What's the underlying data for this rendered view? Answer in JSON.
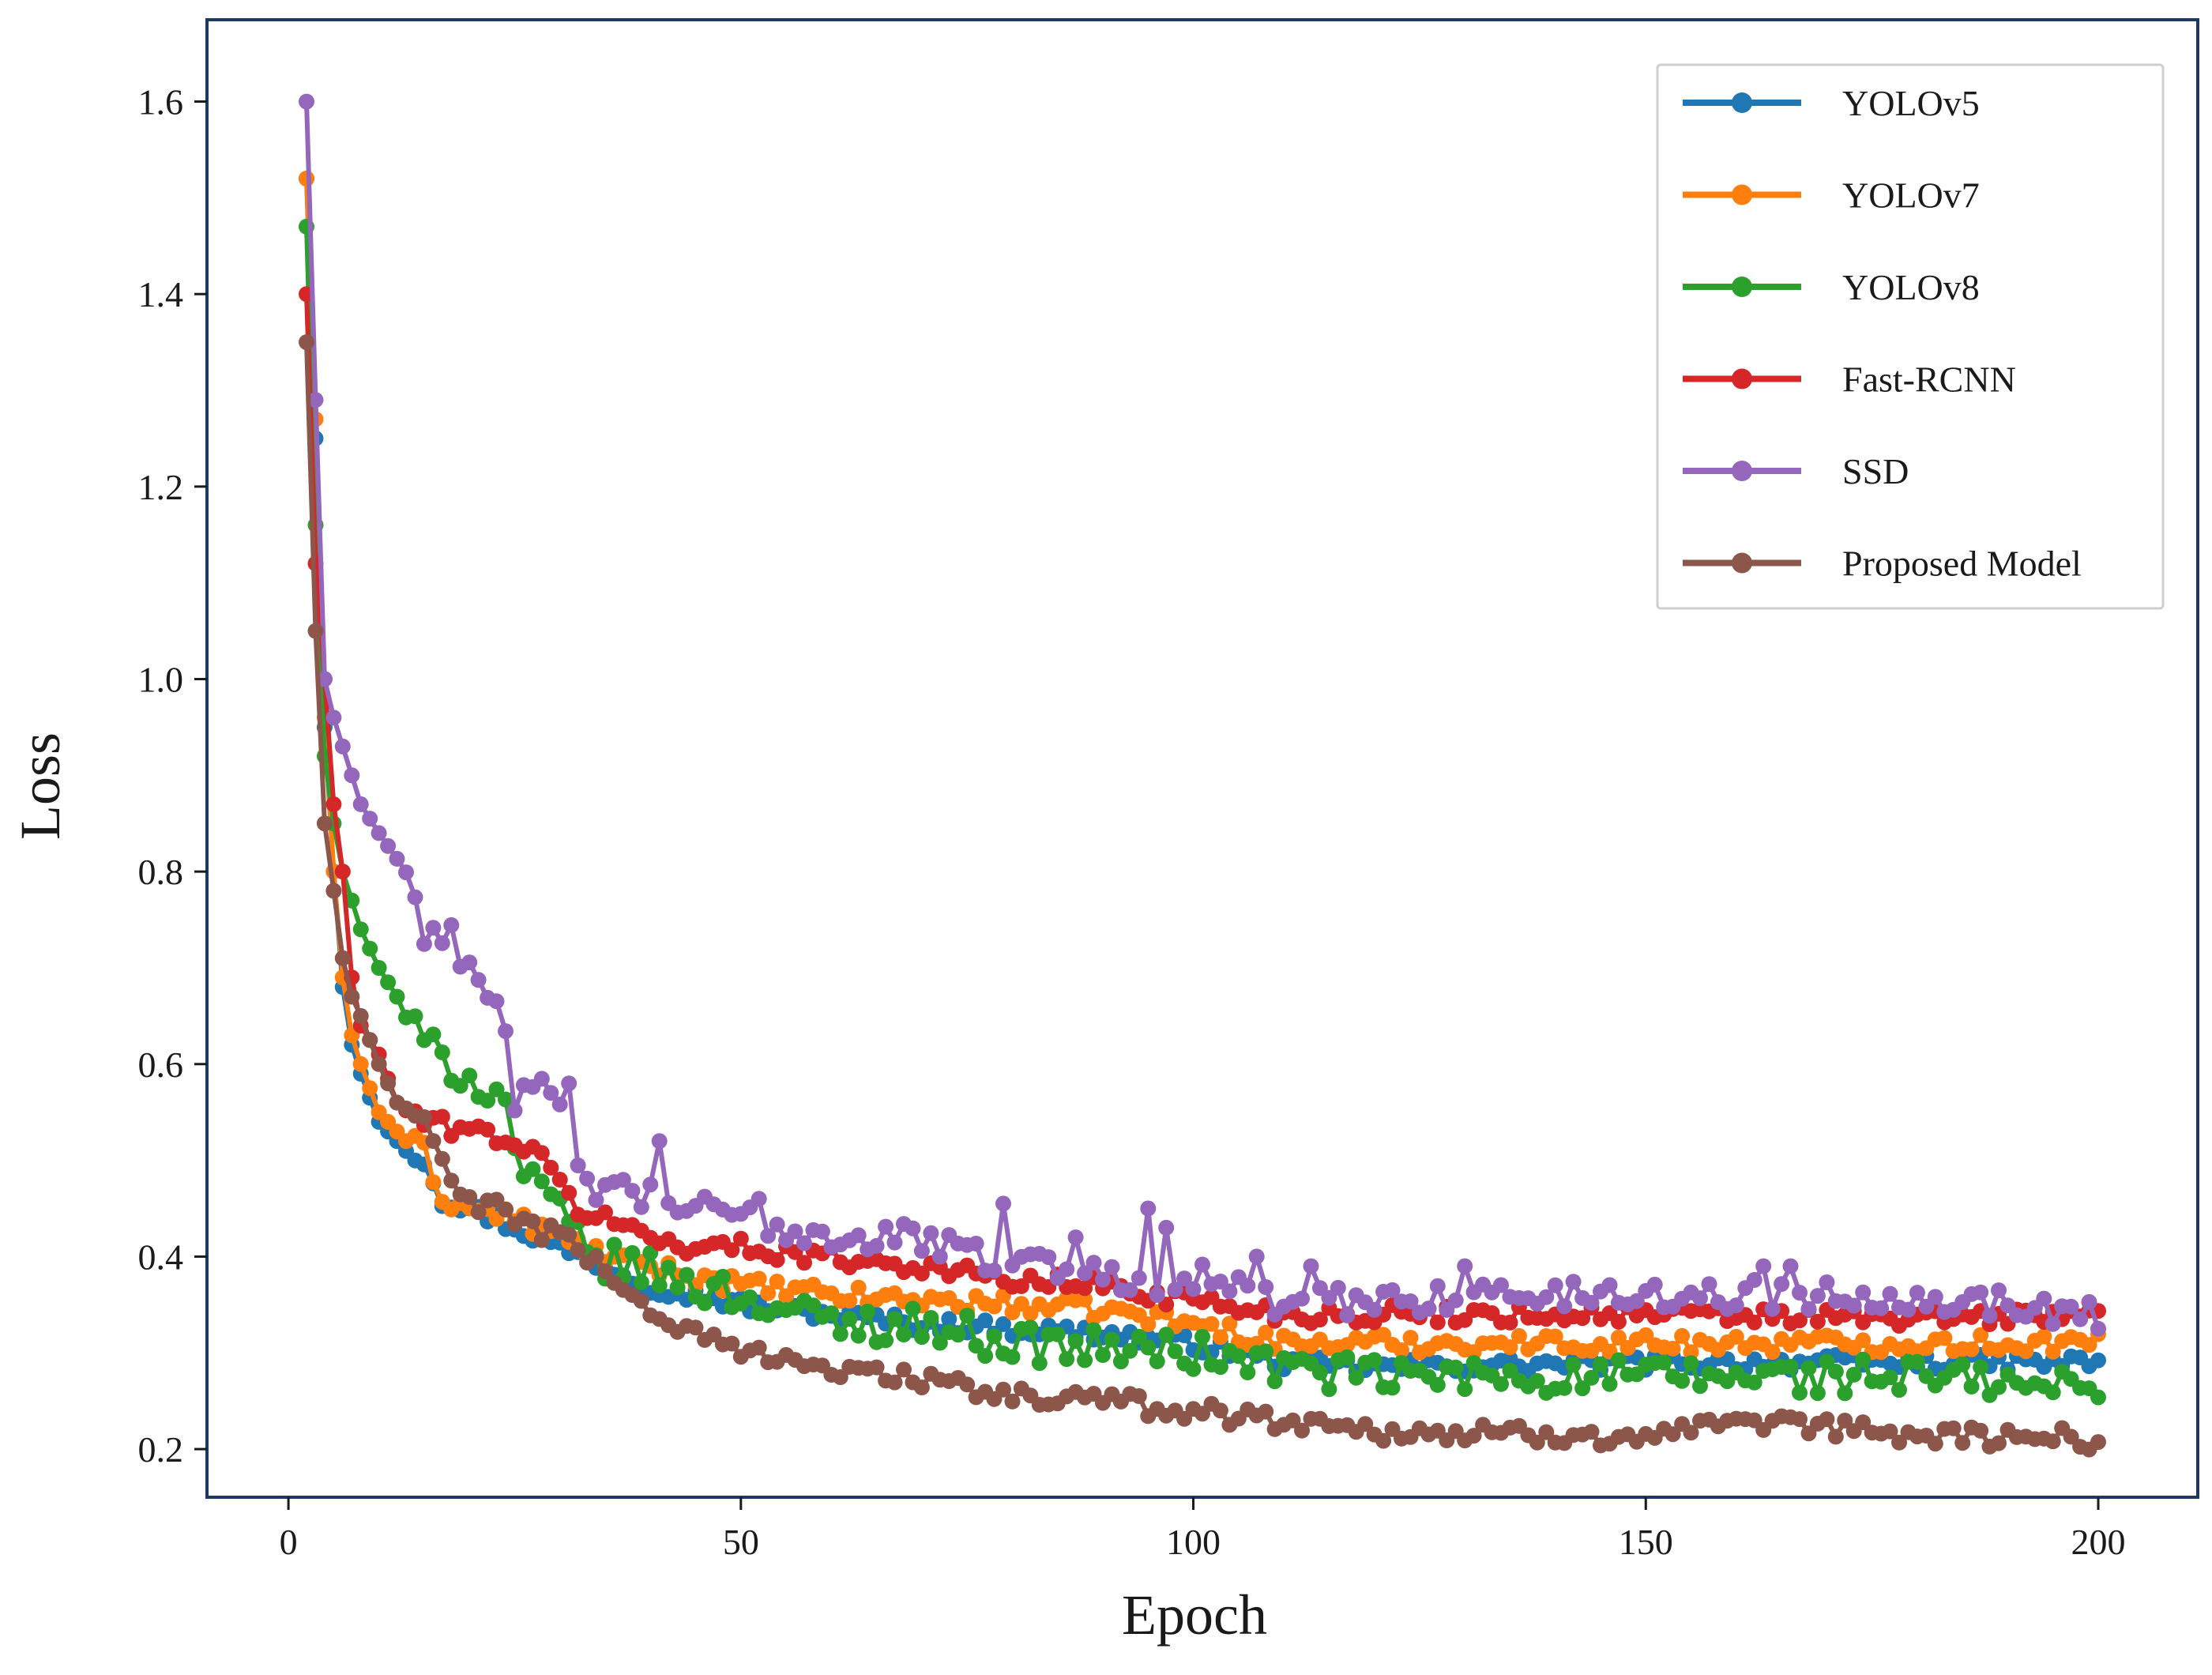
{
  "chart_data": {
    "type": "line",
    "title": "",
    "xlabel": "Epoch",
    "ylabel": "Loss",
    "xlim": [
      -9,
      211
    ],
    "ylim": [
      0.15,
      1.685
    ],
    "xticks": [
      0,
      50,
      100,
      150,
      200
    ],
    "yticks": [
      0.2,
      0.4,
      0.6,
      0.8,
      1.0,
      1.2,
      1.4,
      1.6
    ],
    "xtick_labels": [
      "0",
      "50",
      "100",
      "150",
      "200"
    ],
    "ytick_labels": [
      "0.2",
      "0.4",
      "0.6",
      "0.8",
      "1.0",
      "1.2",
      "1.4",
      "1.6"
    ],
    "grid": false,
    "legend_position": "top-right",
    "epochs": {
      "start": 2,
      "end": 200
    },
    "series": [
      {
        "name": "YOLOv5",
        "color": "#1f77b4",
        "anchors": [
          [
            2,
            1.52
          ],
          [
            3,
            1.25
          ],
          [
            4,
            0.95
          ],
          [
            5,
            0.8
          ],
          [
            6,
            0.68
          ],
          [
            7,
            0.62
          ],
          [
            8,
            0.59
          ],
          [
            10,
            0.54
          ],
          [
            12,
            0.52
          ],
          [
            15,
            0.5
          ],
          [
            17,
            0.46
          ],
          [
            20,
            0.45
          ],
          [
            25,
            0.43
          ],
          [
            30,
            0.41
          ],
          [
            35,
            0.39
          ],
          [
            40,
            0.37
          ],
          [
            45,
            0.36
          ],
          [
            50,
            0.35
          ],
          [
            60,
            0.34
          ],
          [
            70,
            0.33
          ],
          [
            80,
            0.325
          ],
          [
            90,
            0.32
          ],
          [
            100,
            0.31
          ],
          [
            110,
            0.29
          ],
          [
            120,
            0.285
          ],
          [
            150,
            0.29
          ],
          [
            180,
            0.29
          ],
          [
            200,
            0.29
          ]
        ],
        "noise": 0.005
      },
      {
        "name": "YOLOv7",
        "color": "#ff7f0e",
        "anchors": [
          [
            2,
            1.52
          ],
          [
            3,
            1.27
          ],
          [
            4,
            0.96
          ],
          [
            5,
            0.8
          ],
          [
            6,
            0.69
          ],
          [
            7,
            0.63
          ],
          [
            8,
            0.6
          ],
          [
            10,
            0.55
          ],
          [
            12,
            0.53
          ],
          [
            15,
            0.51
          ],
          [
            17,
            0.46
          ],
          [
            20,
            0.45
          ],
          [
            25,
            0.44
          ],
          [
            30,
            0.42
          ],
          [
            35,
            0.4
          ],
          [
            40,
            0.39
          ],
          [
            45,
            0.38
          ],
          [
            50,
            0.37
          ],
          [
            60,
            0.36
          ],
          [
            70,
            0.355
          ],
          [
            80,
            0.35
          ],
          [
            90,
            0.345
          ],
          [
            100,
            0.33
          ],
          [
            110,
            0.31
          ],
          [
            120,
            0.31
          ],
          [
            150,
            0.31
          ],
          [
            180,
            0.31
          ],
          [
            200,
            0.31
          ]
        ],
        "noise": 0.006
      },
      {
        "name": "YOLOv8",
        "color": "#2ca02c",
        "anchors": [
          [
            2,
            1.47
          ],
          [
            3,
            1.16
          ],
          [
            4,
            0.92
          ],
          [
            5,
            0.85
          ],
          [
            6,
            0.8
          ],
          [
            8,
            0.74
          ],
          [
            10,
            0.7
          ],
          [
            12,
            0.67
          ],
          [
            15,
            0.62
          ],
          [
            18,
            0.6
          ],
          [
            21,
            0.58
          ],
          [
            24,
            0.56
          ],
          [
            26,
            0.48
          ],
          [
            30,
            0.45
          ],
          [
            33,
            0.4
          ],
          [
            40,
            0.385
          ],
          [
            45,
            0.37
          ],
          [
            50,
            0.36
          ],
          [
            60,
            0.33
          ],
          [
            70,
            0.33
          ],
          [
            80,
            0.31
          ],
          [
            90,
            0.305
          ],
          [
            100,
            0.3
          ],
          [
            110,
            0.285
          ],
          [
            120,
            0.275
          ],
          [
            150,
            0.275
          ],
          [
            180,
            0.275
          ],
          [
            200,
            0.26
          ]
        ],
        "noise": 0.012
      },
      {
        "name": "Fast-RCNN",
        "color": "#d62728",
        "anchors": [
          [
            2,
            1.4
          ],
          [
            3,
            1.12
          ],
          [
            4,
            1.0
          ],
          [
            5,
            0.87
          ],
          [
            6,
            0.8
          ],
          [
            7,
            0.69
          ],
          [
            8,
            0.64
          ],
          [
            10,
            0.61
          ],
          [
            12,
            0.56
          ],
          [
            15,
            0.54
          ],
          [
            18,
            0.535
          ],
          [
            21,
            0.53
          ],
          [
            25,
            0.52
          ],
          [
            28,
            0.5
          ],
          [
            32,
            0.45
          ],
          [
            35,
            0.44
          ],
          [
            40,
            0.42
          ],
          [
            45,
            0.41
          ],
          [
            50,
            0.41
          ],
          [
            60,
            0.4
          ],
          [
            70,
            0.39
          ],
          [
            80,
            0.375
          ],
          [
            90,
            0.37
          ],
          [
            100,
            0.355
          ],
          [
            110,
            0.34
          ],
          [
            120,
            0.34
          ],
          [
            150,
            0.34
          ],
          [
            180,
            0.335
          ],
          [
            200,
            0.34
          ]
        ],
        "noise": 0.006
      },
      {
        "name": "SSD",
        "color": "#9467bd",
        "anchors": [
          [
            2,
            1.6
          ],
          [
            3,
            1.29
          ],
          [
            4,
            1.0
          ],
          [
            5,
            0.96
          ],
          [
            6,
            0.93
          ],
          [
            8,
            0.87
          ],
          [
            10,
            0.84
          ],
          [
            13,
            0.8
          ],
          [
            15,
            0.74
          ],
          [
            18,
            0.73
          ],
          [
            21,
            0.69
          ],
          [
            24,
            0.65
          ],
          [
            25,
            0.56
          ],
          [
            28,
            0.57
          ],
          [
            30,
            0.55
          ],
          [
            33,
            0.475
          ],
          [
            40,
            0.46
          ],
          [
            45,
            0.45
          ],
          [
            50,
            0.44
          ],
          [
            55,
            0.43
          ],
          [
            60,
            0.42
          ],
          [
            70,
            0.42
          ],
          [
            75,
            0.4
          ],
          [
            80,
            0.4
          ],
          [
            90,
            0.38
          ],
          [
            95,
            0.375
          ],
          [
            100,
            0.38
          ],
          [
            105,
            0.37
          ],
          [
            110,
            0.35
          ],
          [
            130,
            0.36
          ],
          [
            150,
            0.36
          ],
          [
            165,
            0.36
          ],
          [
            180,
            0.36
          ],
          [
            200,
            0.34
          ]
        ],
        "noise": 0.01,
        "spikes": [
          [
            31,
            0.58
          ],
          [
            41,
            0.52
          ],
          [
            52,
            0.46
          ],
          [
            79,
            0.455
          ],
          [
            87,
            0.42
          ],
          [
            95,
            0.45
          ],
          [
            97,
            0.43
          ],
          [
            107,
            0.4
          ],
          [
            113,
            0.39
          ],
          [
            130,
            0.39
          ],
          [
            163,
            0.39
          ],
          [
            166,
            0.39
          ]
        ]
      },
      {
        "name": "Proposed Model",
        "color": "#8c564b",
        "anchors": [
          [
            2,
            1.35
          ],
          [
            3,
            1.05
          ],
          [
            4,
            0.85
          ],
          [
            5,
            0.78
          ],
          [
            6,
            0.71
          ],
          [
            7,
            0.67
          ],
          [
            8,
            0.65
          ],
          [
            10,
            0.6
          ],
          [
            12,
            0.56
          ],
          [
            15,
            0.54
          ],
          [
            17,
            0.5
          ],
          [
            18,
            0.47
          ],
          [
            20,
            0.46
          ],
          [
            25,
            0.44
          ],
          [
            30,
            0.42
          ],
          [
            33,
            0.4
          ],
          [
            36,
            0.38
          ],
          [
            40,
            0.34
          ],
          [
            45,
            0.32
          ],
          [
            50,
            0.3
          ],
          [
            55,
            0.3
          ],
          [
            60,
            0.28
          ],
          [
            70,
            0.275
          ],
          [
            75,
            0.26
          ],
          [
            80,
            0.255
          ],
          [
            90,
            0.25
          ],
          [
            95,
            0.245
          ],
          [
            100,
            0.24
          ],
          [
            110,
            0.23
          ],
          [
            120,
            0.22
          ],
          [
            130,
            0.215
          ],
          [
            150,
            0.215
          ],
          [
            165,
            0.225
          ],
          [
            180,
            0.215
          ],
          [
            200,
            0.21
          ]
        ],
        "noise": 0.007
      }
    ]
  }
}
